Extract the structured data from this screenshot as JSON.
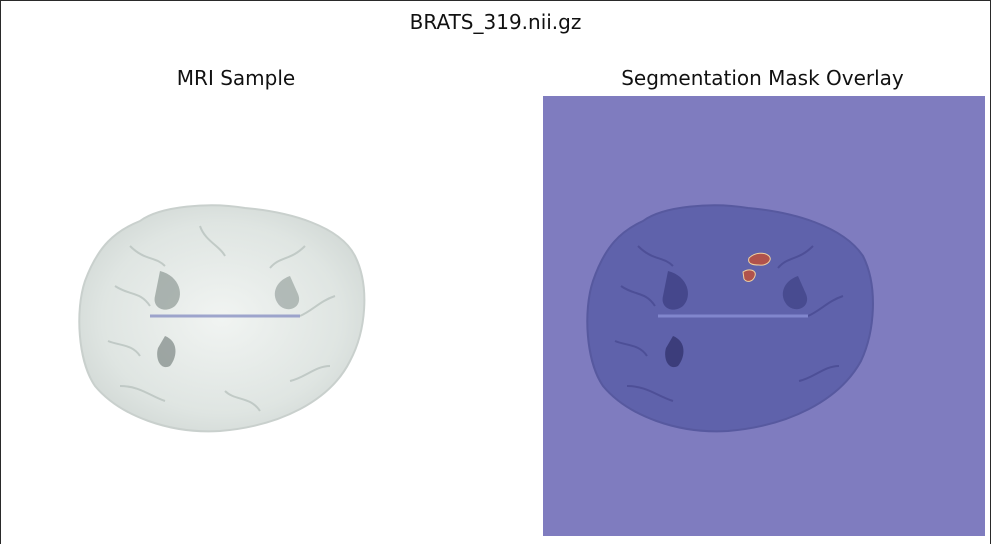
{
  "figure": {
    "suptitle": "BRATS_319.nii.gz",
    "left_title": "MRI Sample",
    "right_title": "Segmentation Mask Overlay"
  },
  "colors": {
    "overlay_background": "#7f7cbf",
    "brain_light": "#e6ebe8",
    "brain_dark_overlay": "#5d5fa8",
    "lesion": "#b0524c"
  }
}
